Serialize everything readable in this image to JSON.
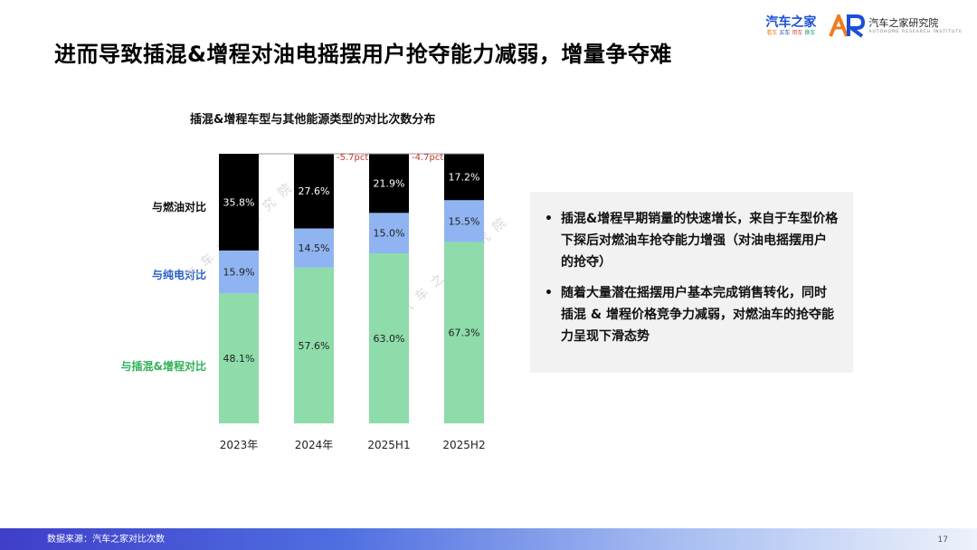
{
  "page": {
    "title": "进而导致插混&增程对油电摇摆用户抢夺能力减弱，增量争夺难",
    "source": "数据来源：汽车之家对比次数",
    "page_number": "17"
  },
  "logos": {
    "brand1": "汽车之家",
    "brand1_sub": [
      "看车",
      "买车",
      "用车",
      "换车"
    ],
    "brand2_cn": "汽车之家研究院",
    "brand2_en": "AUTOHOME RESEARCH INSTITUTE",
    "brand2_mark": "AR"
  },
  "watermark": "汽车之家研究院",
  "colors": {
    "fuel": "#000000",
    "ev": "#8fb4f1",
    "phev": "#8ddcaa",
    "fuel_label": "#111111",
    "ev_label": "#2a5fc7",
    "phev_label": "#2fb25a",
    "annotation": "#c0392b",
    "connector": "#999999"
  },
  "notes": [
    "插混&增程早期销量的快速增长，来自于车型价格下探后对燃油车抢夺能力增强（对油电摇摆用户的抢夺）",
    "随着大量潜在摇摆用户基本完成销售转化，同时插混 & 增程价格竞争力减弱，对燃油车的抢夺能力呈现下滑态势"
  ],
  "chart_data": {
    "type": "bar",
    "stacked": true,
    "title": "插混&增程车型与其他能源类型的对比次数分布",
    "categories": [
      "2023年",
      "2024年",
      "2025H1",
      "2025H2"
    ],
    "series": [
      {
        "name": "与插混&增程对比",
        "values": [
          48.1,
          57.6,
          63.0,
          67.3
        ],
        "labels": [
          "48.1%",
          "57.6%",
          "63.0%",
          "67.3%"
        ]
      },
      {
        "name": "与纯电对比",
        "values": [
          15.9,
          14.5,
          15.0,
          15.5
        ],
        "labels": [
          "15.9%",
          "14.5%",
          "15.0%",
          "15.5%"
        ]
      },
      {
        "name": "与燃油对比",
        "values": [
          35.8,
          27.6,
          21.9,
          17.2
        ],
        "labels": [
          "35.8%",
          "27.6%",
          "21.9%",
          "17.2%"
        ]
      }
    ],
    "annotations": [
      {
        "between": [
          "2024年",
          "2025H1"
        ],
        "text": "-5.7pct"
      },
      {
        "between": [
          "2025H1",
          "2025H2"
        ],
        "text": "-4.7pct"
      }
    ],
    "ylim": [
      0,
      100
    ],
    "grid": false
  }
}
